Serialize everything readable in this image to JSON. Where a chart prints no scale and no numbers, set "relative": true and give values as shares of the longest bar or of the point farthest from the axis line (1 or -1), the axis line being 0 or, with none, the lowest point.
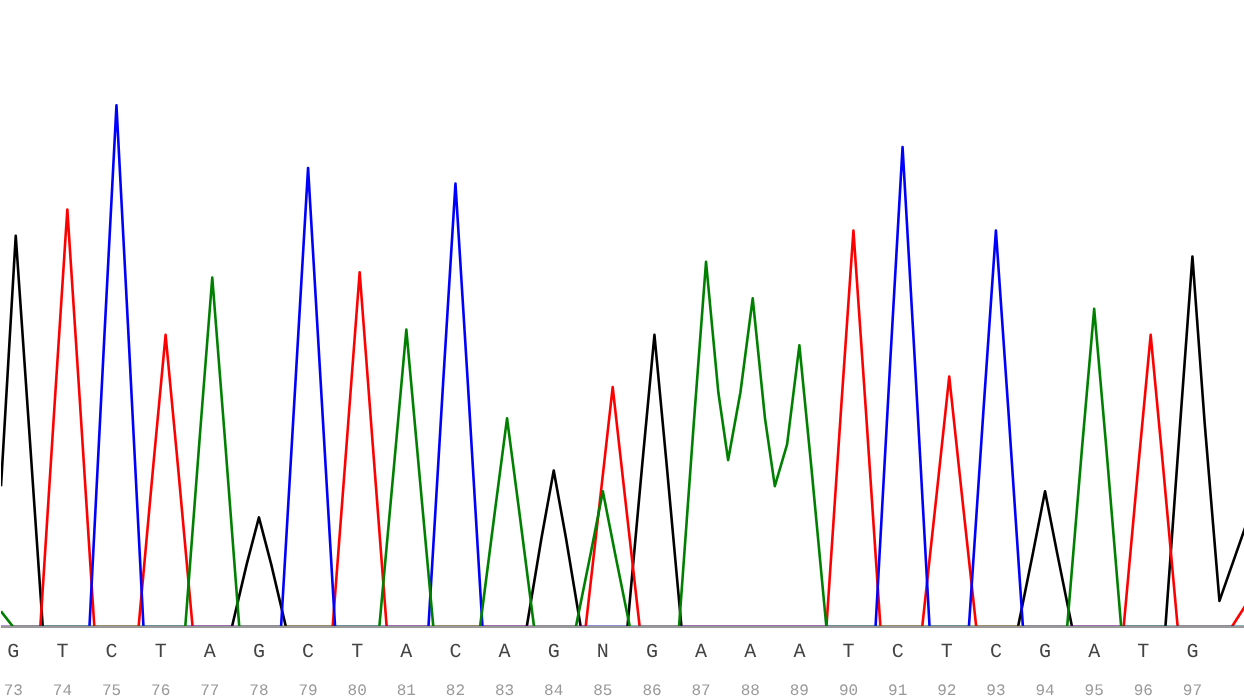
{
  "chart_data": {
    "type": "line",
    "relative": true,
    "xlim": [
      72.75,
      98.07
    ],
    "xticks": [
      73,
      74,
      75,
      76,
      77,
      78,
      79,
      80,
      81,
      82,
      83,
      84,
      85,
      86,
      87,
      88,
      89,
      90,
      91,
      92,
      93,
      94,
      95,
      96,
      97
    ],
    "annotations": [
      "G",
      "T",
      "C",
      "T",
      "A",
      "G",
      "C",
      "T",
      "A",
      "C",
      "A",
      "G",
      "N",
      "G",
      "A",
      "A",
      "A",
      "T",
      "C",
      "T",
      "C",
      "G",
      "A",
      "T",
      "G"
    ],
    "series": [
      {
        "color": "#000000",
        "x": [
          72.75,
          73.05,
          73.3,
          73.6,
          77.45,
          77.75,
          78.0,
          78.25,
          78.55,
          83.45,
          83.75,
          84.0,
          84.25,
          84.55,
          85.5,
          85.8,
          86.05,
          86.3,
          86.6,
          93.45,
          93.75,
          94.0,
          94.25,
          94.55,
          96.45,
          96.75,
          97.0,
          97.25,
          97.55,
          98.07
        ],
        "values": [
          0.27,
          0.75,
          0.41,
          0,
          0,
          0.12,
          0.21,
          0.12,
          0,
          0,
          0.17,
          0.3,
          0.17,
          0,
          0,
          0.31,
          0.56,
          0.31,
          0,
          0,
          0.14,
          0.26,
          0.14,
          0,
          0,
          0.39,
          0.71,
          0.39,
          0.05,
          0.19
        ]
      },
      {
        "color": "#ff0000",
        "x": [
          72.75,
          73.55,
          73.85,
          74.1,
          74.35,
          74.65,
          75.55,
          75.85,
          76.1,
          76.35,
          76.65,
          79.5,
          79.8,
          80.05,
          80.3,
          80.6,
          84.65,
          84.95,
          85.2,
          85.45,
          85.75,
          89.55,
          89.85,
          90.1,
          90.35,
          90.65,
          91.5,
          91.8,
          92.05,
          92.3,
          92.6,
          95.6,
          95.9,
          96.15,
          96.4,
          96.7,
          97.8,
          98.07
        ],
        "values": [
          0,
          0,
          0.44,
          0.8,
          0.44,
          0,
          0,
          0.31,
          0.56,
          0.31,
          0,
          0,
          0.37,
          0.68,
          0.37,
          0,
          0,
          0.25,
          0.46,
          0.25,
          0,
          0,
          0.42,
          0.76,
          0.42,
          0,
          0,
          0.26,
          0.48,
          0.26,
          0,
          0,
          0.31,
          0.56,
          0.31,
          0,
          0,
          0.04
        ]
      },
      {
        "color": "#0000ff",
        "x": [
          72.75,
          74.55,
          74.85,
          75.1,
          75.35,
          75.65,
          78.45,
          78.75,
          79.0,
          79.25,
          79.55,
          81.45,
          81.75,
          82.0,
          82.25,
          82.55,
          90.55,
          90.85,
          91.1,
          91.35,
          91.65,
          92.45,
          92.75,
          93.0,
          93.25,
          93.55,
          98.07
        ],
        "values": [
          0,
          0,
          0.55,
          1.0,
          0.55,
          0,
          0,
          0.48,
          0.88,
          0.48,
          0,
          0,
          0.47,
          0.85,
          0.47,
          0,
          0,
          0.51,
          0.92,
          0.51,
          0,
          0,
          0.42,
          0.76,
          0.42,
          0,
          0
        ]
      },
      {
        "color": "#008000",
        "x": [
          72.75,
          73.0,
          76.5,
          76.8,
          77.05,
          77.3,
          77.6,
          80.45,
          80.75,
          81.0,
          81.25,
          81.55,
          82.5,
          82.8,
          83.05,
          83.3,
          83.6,
          84.45,
          84.75,
          85.0,
          85.25,
          85.55,
          86.55,
          86.85,
          87.1,
          87.35,
          87.55,
          87.8,
          88.05,
          88.3,
          88.5,
          88.75,
          89.0,
          89.25,
          89.55,
          94.45,
          94.75,
          95.0,
          95.25,
          95.55,
          98.07
        ],
        "values": [
          0.03,
          0,
          0,
          0.37,
          0.67,
          0.37,
          0,
          0,
          0.31,
          0.57,
          0.31,
          0,
          0,
          0.22,
          0.4,
          0.22,
          0,
          0,
          0.14,
          0.26,
          0.14,
          0,
          0,
          0.39,
          0.7,
          0.45,
          0.32,
          0.45,
          0.63,
          0.4,
          0.27,
          0.35,
          0.54,
          0.3,
          0,
          0,
          0.34,
          0.61,
          0.34,
          0,
          0
        ]
      }
    ]
  }
}
